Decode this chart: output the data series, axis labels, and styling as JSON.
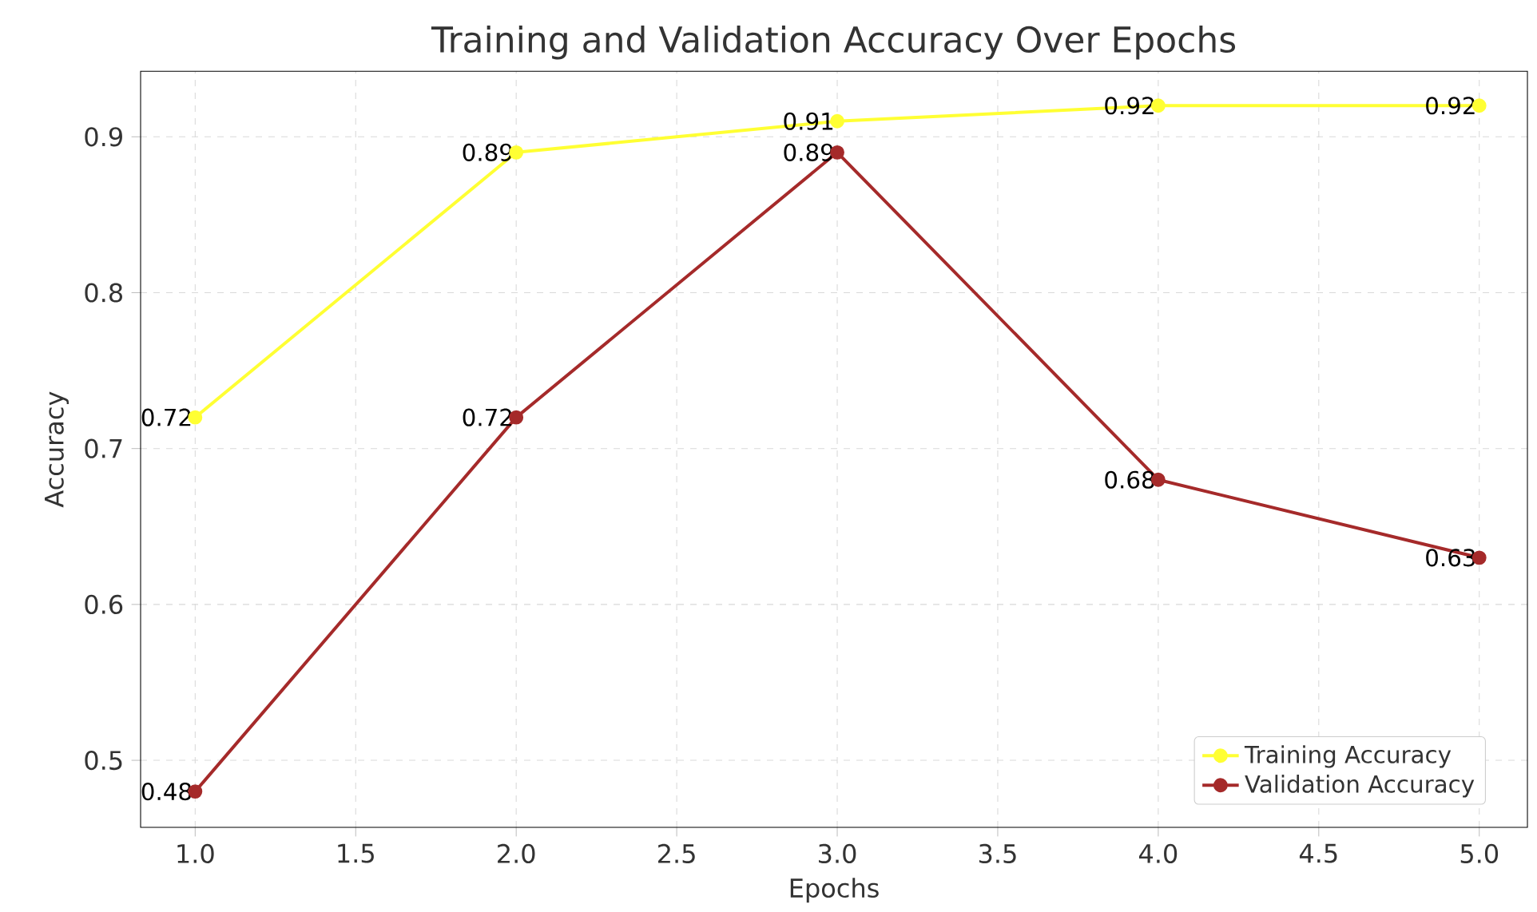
{
  "chart_data": {
    "type": "line",
    "title": "Training and Validation Accuracy Over Epochs",
    "xlabel": "Epochs",
    "ylabel": "Accuracy",
    "x": [
      1,
      2,
      3,
      4,
      5
    ],
    "series": [
      {
        "name": "Training Accuracy",
        "color": "#ffff33",
        "values": [
          0.72,
          0.89,
          0.91,
          0.92,
          0.92
        ]
      },
      {
        "name": "Validation Accuracy",
        "color": "#a52a2a",
        "values": [
          0.48,
          0.72,
          0.89,
          0.68,
          0.63
        ]
      }
    ],
    "xlim": [
      0.83,
      5.15
    ],
    "ylim": [
      0.457,
      0.942
    ],
    "xticks": [
      {
        "value": 1,
        "label": "1.0"
      },
      1.5,
      {
        "value": 2,
        "label": "2.0"
      },
      2.5,
      {
        "value": 3,
        "label": "3.0"
      },
      3.5,
      {
        "value": 4,
        "label": "4.0"
      },
      4.5,
      {
        "value": 5,
        "label": "5.0"
      }
    ],
    "yticks": [
      0.5,
      0.6,
      0.7,
      0.8,
      0.9
    ],
    "grid": true,
    "legend": "bottom right",
    "marker": "circle",
    "line_style": "solid",
    "data_labels": true
  }
}
